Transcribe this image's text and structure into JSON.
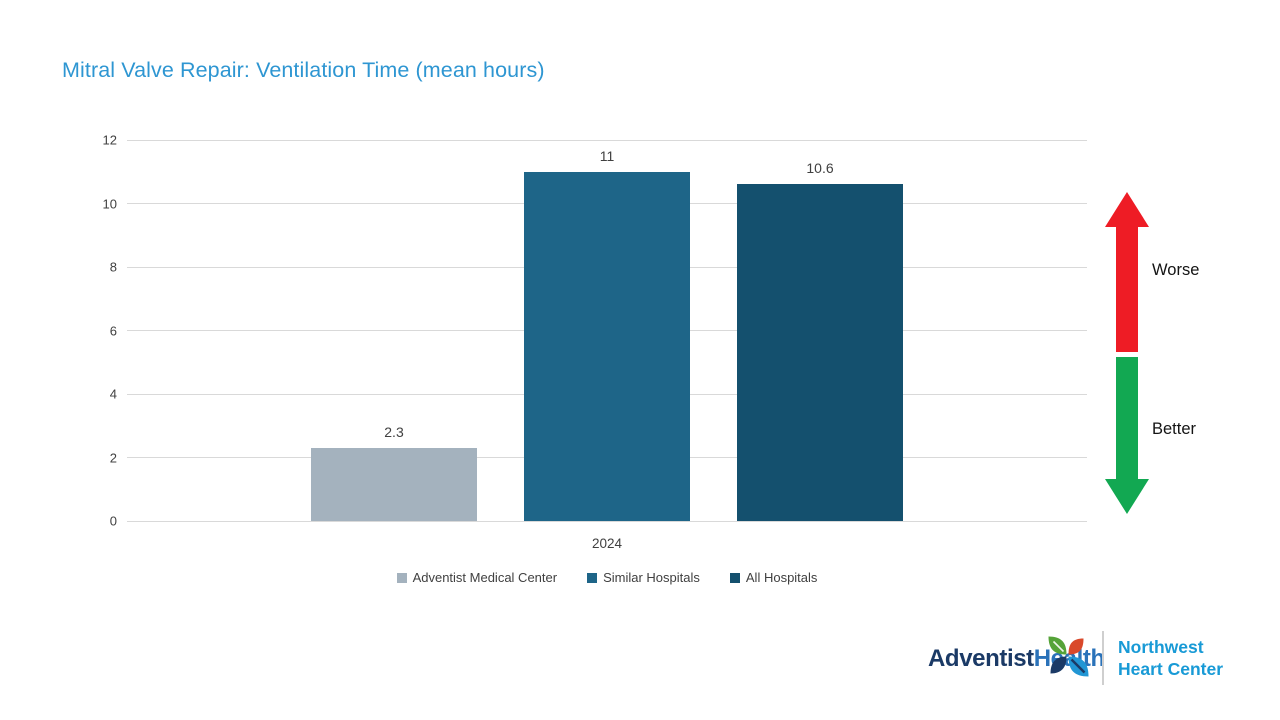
{
  "title": "Mitral Valve Repair: Ventilation Time (mean hours)",
  "chart_data": {
    "type": "bar",
    "categories": [
      "2024"
    ],
    "series": [
      {
        "name": "Adventist Medical Center",
        "values": [
          2.3
        ],
        "label": "2.3",
        "color": "#a4b2be"
      },
      {
        "name": "Similar Hospitals",
        "values": [
          11
        ],
        "label": "11",
        "color": "#1e6588"
      },
      {
        "name": "All Hospitals",
        "values": [
          10.6
        ],
        "label": "10.6",
        "color": "#14506e"
      }
    ],
    "title": "Mitral Valve Repair: Ventilation Time (mean hours)",
    "xlabel": "",
    "ylabel": "",
    "ylim": [
      0,
      12
    ],
    "yticks": [
      0,
      2,
      4,
      6,
      8,
      10,
      12
    ],
    "grid": true,
    "legend_position": "bottom"
  },
  "annotations": {
    "worse": "Worse",
    "better": "Better",
    "worse_color": "#ee1c25",
    "better_color": "#12a852"
  },
  "colors": {
    "title": "#2e96d2",
    "gridline": "#d9d9d9",
    "axis_text": "#404040"
  },
  "footer_logo": {
    "adventist": "Adventist",
    "health": "Health",
    "center_line1": "Northwest",
    "center_line2": "Heart Center",
    "emblem_colors": {
      "top_left": "#55a338",
      "top_right": "#d9492b",
      "bottom_left": "#1b3a66",
      "bottom_right": "#2196d4"
    }
  }
}
